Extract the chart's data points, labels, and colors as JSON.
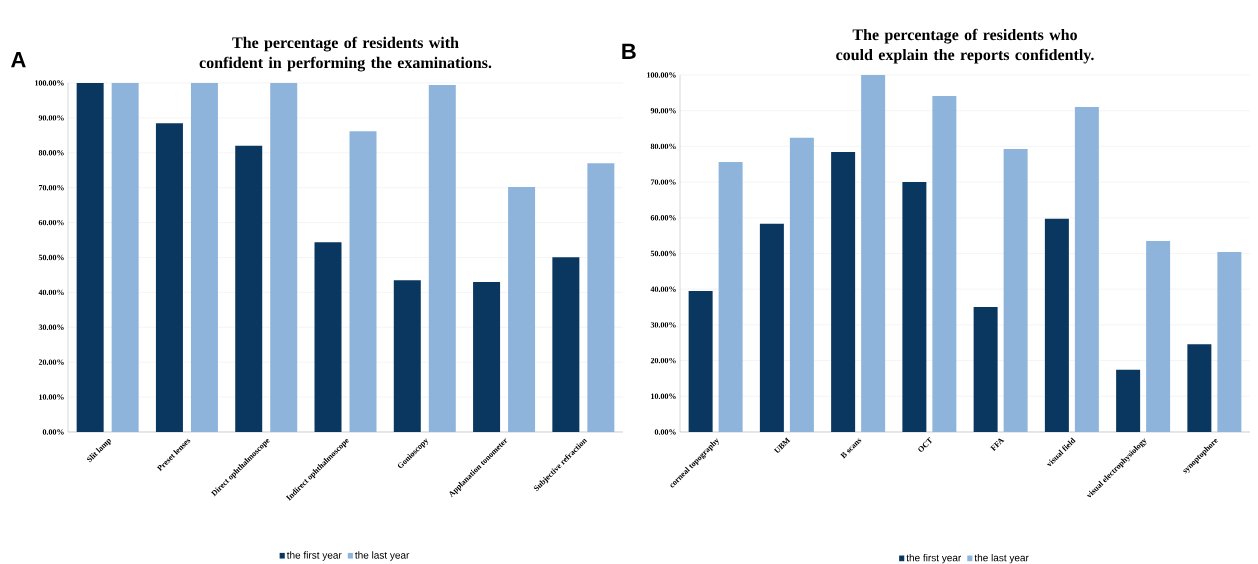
{
  "chart_data": [
    {
      "type": "bar",
      "title": "The percentage of residents with confident in performing the examinations.",
      "annotations": [
        "A"
      ],
      "categories": [
        "Slit lamp",
        "Preset lenses",
        "Direct ophthalmoscope",
        "Indirect ophthalmoscope",
        "Gonioscopy",
        "Applanation tonometer",
        "Subjective refraction"
      ],
      "series": [
        {
          "name": "the first year",
          "color": "#0a3760",
          "values": [
            100,
            88.5,
            82,
            54.4,
            43.5,
            43,
            50.1
          ]
        },
        {
          "name": "the last year",
          "color": "#8fb4dc",
          "values": [
            100,
            100,
            100,
            86.2,
            99.4,
            70.2,
            77
          ]
        }
      ],
      "ylim": [
        0,
        100
      ],
      "yticks": [
        {
          "value": 0,
          "label": "0.00%"
        },
        {
          "value": 10,
          "label": "10.00%"
        },
        {
          "value": 20,
          "label": "20.00%"
        },
        {
          "value": 30,
          "label": "30.00%"
        },
        {
          "value": 40,
          "label": "40.00%"
        },
        {
          "value": 50,
          "label": "50.00%"
        },
        {
          "value": 60,
          "label": "60.00%"
        },
        {
          "value": 70,
          "label": "70.00%"
        },
        {
          "value": 80,
          "label": "80.00%"
        },
        {
          "value": 90,
          "label": "90.00%"
        },
        {
          "value": 100,
          "label": "100.00%"
        }
      ],
      "grid": "y",
      "legend": "bottom"
    },
    {
      "type": "bar",
      "title": "The percentage of residents who could explain the reports confidently.",
      "annotations": [
        "B"
      ],
      "categories": [
        "corneal topography",
        "UBM",
        "B scans",
        "OCT",
        "FFA",
        "visual field",
        "visual electrophysiology",
        "synoptophore"
      ],
      "series": [
        {
          "name": "the first year",
          "color": "#0a3760",
          "values": [
            39.5,
            58.3,
            78.4,
            70,
            35,
            59.7,
            17.4,
            24.6
          ]
        },
        {
          "name": "the last year",
          "color": "#8fb4dc",
          "values": [
            75.6,
            82.4,
            100,
            94.1,
            79.3,
            91,
            53.5,
            50.4
          ]
        }
      ],
      "ylim": [
        0,
        100
      ],
      "yticks": [
        {
          "value": 0,
          "label": "0.00%"
        },
        {
          "value": 10,
          "label": "10.00%"
        },
        {
          "value": 20,
          "label": "20.00%"
        },
        {
          "value": 30,
          "label": "30.00%"
        },
        {
          "value": 40,
          "label": "40.00%"
        },
        {
          "value": 50,
          "label": "50.00%"
        },
        {
          "value": 60,
          "label": "60.00%"
        },
        {
          "value": 70,
          "label": "70.00%"
        },
        {
          "value": 80,
          "label": "80.00%"
        },
        {
          "value": 90,
          "label": "90.00%"
        },
        {
          "value": 100,
          "label": "100.00%"
        }
      ],
      "grid": "y",
      "legend": "bottom"
    }
  ]
}
